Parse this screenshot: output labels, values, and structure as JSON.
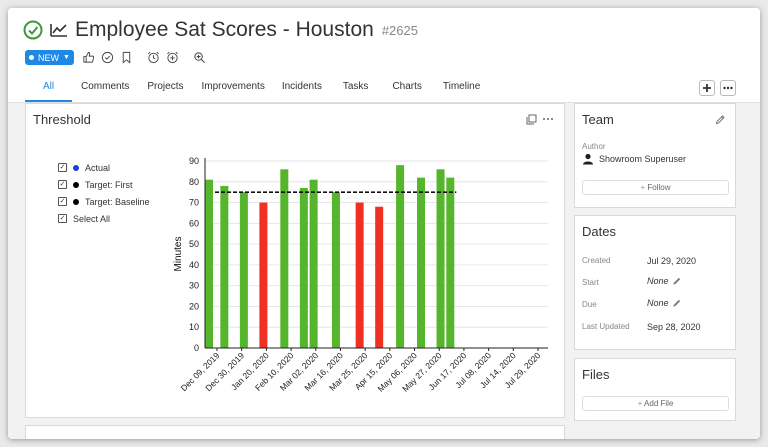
{
  "header": {
    "title": "Employee Sat Scores - Houston",
    "record_number": "#2625",
    "status_label": "NEW"
  },
  "tabs": [
    "All",
    "Comments",
    "Projects",
    "Improvements",
    "Incidents",
    "Tasks",
    "Charts",
    "Timeline"
  ],
  "threshold_panel": {
    "title": "Threshold",
    "legend": [
      {
        "label": "Actual",
        "color": "#1a3fd6"
      },
      {
        "label": "Target: First",
        "color": "#000000"
      },
      {
        "label": "Target: Baseline",
        "color": "#000000"
      }
    ],
    "select_all_label": "Select All"
  },
  "chart_data": {
    "type": "bar",
    "ylabel": "Minutes",
    "ylim": [
      0,
      90
    ],
    "yticks": [
      0,
      10,
      20,
      30,
      40,
      50,
      60,
      70,
      80,
      90
    ],
    "grid": true,
    "target_line": 75,
    "categories": [
      "Dec 09, 2019",
      "Dec 30, 2019",
      "Jan 20, 2020",
      "Feb 10, 2020",
      "Mar 02, 2020",
      "Mar 16, 2020",
      "Mar 25, 2020",
      "Apr 15, 2020",
      "May 06, 2020",
      "May 27, 2020",
      "Jun 17, 2020",
      "Jul 08, 2020",
      "Jul 14, 2020",
      "Jul 29, 2020"
    ],
    "bars": [
      {
        "x": "2019-12-09",
        "value": 81,
        "color": "#55b52c"
      },
      {
        "x": "2019-12-20",
        "value": 78,
        "color": "#55b52c"
      },
      {
        "x": "2020-01-03",
        "value": 75,
        "color": "#55b52c"
      },
      {
        "x": "2020-01-17",
        "value": 70,
        "color": "#ee3124"
      },
      {
        "x": "2020-02-01",
        "value": 86,
        "color": "#55b52c"
      },
      {
        "x": "2020-02-15",
        "value": 77,
        "color": "#55b52c"
      },
      {
        "x": "2020-02-22",
        "value": 81,
        "color": "#55b52c"
      },
      {
        "x": "2020-03-09",
        "value": 75,
        "color": "#55b52c"
      },
      {
        "x": "2020-03-26",
        "value": 70,
        "color": "#ee3124"
      },
      {
        "x": "2020-04-09",
        "value": 68,
        "color": "#ee3124"
      },
      {
        "x": "2020-04-24",
        "value": 88,
        "color": "#55b52c"
      },
      {
        "x": "2020-05-09",
        "value": 82,
        "color": "#55b52c"
      },
      {
        "x": "2020-05-23",
        "value": 86,
        "color": "#55b52c"
      },
      {
        "x": "2020-05-30",
        "value": 82,
        "color": "#55b52c"
      }
    ]
  },
  "team_panel": {
    "title": "Team",
    "author_label": "Author",
    "author_name": "Showroom Superuser",
    "follow_label": "Follow"
  },
  "dates_panel": {
    "title": "Dates",
    "rows": [
      {
        "label": "Created",
        "value": "Jul 29, 2020"
      },
      {
        "label": "Start",
        "value": "None"
      },
      {
        "label": "Due",
        "value": "None"
      },
      {
        "label": "Last Updated",
        "value": "Sep 28, 2020"
      }
    ]
  },
  "files_panel": {
    "title": "Files",
    "add_label": "Add File"
  },
  "colors": {
    "accent": "#1e88e5",
    "success": "#3a9a3a",
    "bar_green": "#55b52c",
    "bar_red": "#ee3124"
  },
  "icons": [
    "check-circle-icon",
    "trend-line-icon",
    "thumbs-up-icon",
    "check-icon",
    "bookmark-icon",
    "alarm-clock-icon",
    "alarm-add-icon",
    "zoom-icon",
    "plus-icon",
    "more-icon",
    "copy-icon",
    "pencil-icon",
    "user-icon"
  ]
}
